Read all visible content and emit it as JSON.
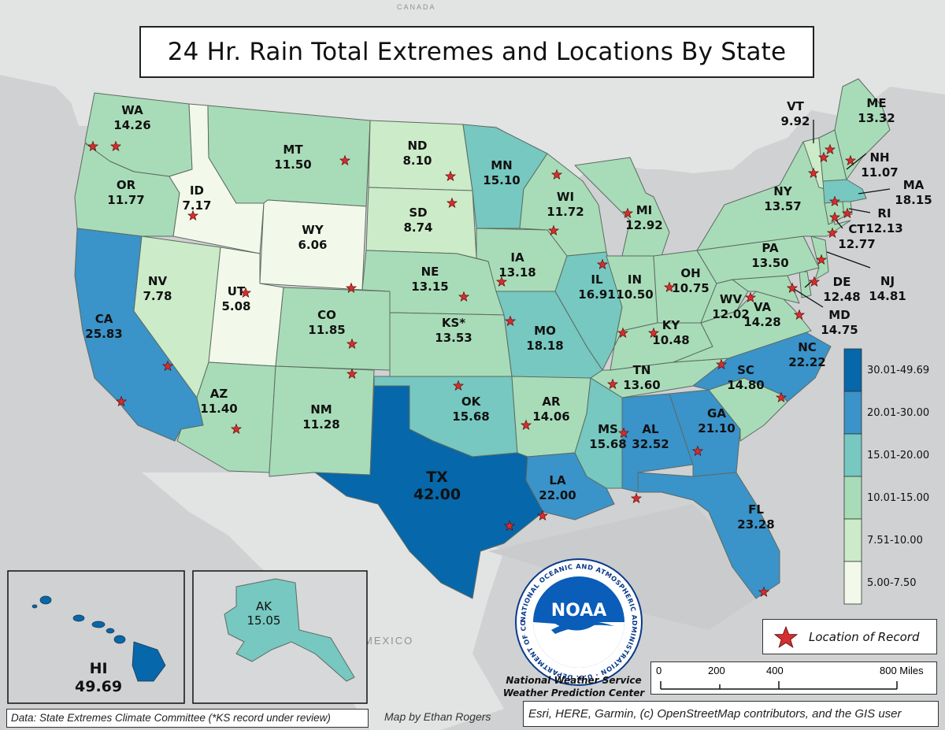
{
  "title": "24 Hr. Rain Total Extremes and Locations By State",
  "country_labels": {
    "canada": "CANADA",
    "mexico": "MEXICO"
  },
  "legend": {
    "classes": [
      {
        "label": "30.01-49.69",
        "color": "#0667aa"
      },
      {
        "label": "20.01-30.00",
        "color": "#3a93c9"
      },
      {
        "label": "15.01-20.00",
        "color": "#76c8c0"
      },
      {
        "label": "10.01-15.00",
        "color": "#a8dcb8"
      },
      {
        "label": "7.51-10.00",
        "color": "#ccebc8"
      },
      {
        "label": "5.00-7.50",
        "color": "#f2f9ea"
      }
    ]
  },
  "marker_legend": "Location of Record",
  "states": [
    {
      "abbr": "WA",
      "value": "14.26"
    },
    {
      "abbr": "OR",
      "value": "11.77"
    },
    {
      "abbr": "CA",
      "value": "25.83"
    },
    {
      "abbr": "ID",
      "value": "7.17"
    },
    {
      "abbr": "NV",
      "value": "7.78"
    },
    {
      "abbr": "MT",
      "value": "11.50"
    },
    {
      "abbr": "WY",
      "value": "6.06"
    },
    {
      "abbr": "UT",
      "value": "5.08"
    },
    {
      "abbr": "AZ",
      "value": "11.40"
    },
    {
      "abbr": "CO",
      "value": "11.85"
    },
    {
      "abbr": "NM",
      "value": "11.28"
    },
    {
      "abbr": "ND",
      "value": "8.10"
    },
    {
      "abbr": "SD",
      "value": "8.74"
    },
    {
      "abbr": "NE",
      "value": "13.15"
    },
    {
      "abbr": "KS*",
      "value": "13.53"
    },
    {
      "abbr": "OK",
      "value": "15.68"
    },
    {
      "abbr": "TX",
      "value": "42.00"
    },
    {
      "abbr": "MN",
      "value": "15.10"
    },
    {
      "abbr": "IA",
      "value": "13.18"
    },
    {
      "abbr": "MO",
      "value": "18.18"
    },
    {
      "abbr": "AR",
      "value": "14.06"
    },
    {
      "abbr": "LA",
      "value": "22.00"
    },
    {
      "abbr": "WI",
      "value": "11.72"
    },
    {
      "abbr": "IL",
      "value": "16.91"
    },
    {
      "abbr": "MI",
      "value": "12.92"
    },
    {
      "abbr": "IN",
      "value": "10.50"
    },
    {
      "abbr": "OH",
      "value": "10.75"
    },
    {
      "abbr": "KY",
      "value": "10.48"
    },
    {
      "abbr": "TN",
      "value": "13.60"
    },
    {
      "abbr": "MS",
      "value": "15.68"
    },
    {
      "abbr": "AL",
      "value": "32.52"
    },
    {
      "abbr": "GA",
      "value": "21.10"
    },
    {
      "abbr": "FL",
      "value": "23.28"
    },
    {
      "abbr": "SC",
      "value": "14.80"
    },
    {
      "abbr": "NC",
      "value": "22.22"
    },
    {
      "abbr": "VA",
      "value": "14.28"
    },
    {
      "abbr": "WV",
      "value": "12.02"
    },
    {
      "abbr": "PA",
      "value": "13.50"
    },
    {
      "abbr": "NY",
      "value": "13.57"
    },
    {
      "abbr": "VT",
      "value": "9.92"
    },
    {
      "abbr": "ME",
      "value": "13.32"
    },
    {
      "abbr": "NH",
      "value": "11.07"
    },
    {
      "abbr": "MA",
      "value": "18.15"
    },
    {
      "abbr": "RI",
      "value": "12.13"
    },
    {
      "abbr": "CT",
      "value": "12.77"
    },
    {
      "abbr": "NJ",
      "value": "14.81"
    },
    {
      "abbr": "DE",
      "value": "12.48"
    },
    {
      "abbr": "MD",
      "value": "14.75"
    },
    {
      "abbr": "AK",
      "value": "15.05"
    },
    {
      "abbr": "HI",
      "value": "49.69"
    }
  ],
  "scale_bar": {
    "ticks": [
      "0",
      "200",
      "400",
      "800 Miles"
    ]
  },
  "agency": {
    "line1": "National Weather Service",
    "line2": "Weather Prediction Center",
    "logo_text": "NOAA",
    "ring_text": "NATIONAL OCEANIC AND ATMOSPHERIC ADMINISTRATION · U.S. DEPARTMENT OF COMMERCE"
  },
  "credits": {
    "data_source": "Data: State Extremes Climate Committee (*KS record under review)",
    "author": "Map by Ethan Rogers",
    "basemap": "Esri, HERE, Garmin, (c) OpenStreetMap contributors, and the GIS user"
  }
}
